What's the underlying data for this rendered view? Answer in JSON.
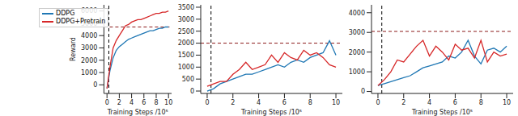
{
  "chart_data": [
    {
      "type": "line",
      "x_label": "Training Steps /10⁵",
      "y_label": "Reward",
      "x": [
        0,
        0.5,
        1,
        1.5,
        2,
        2.5,
        3,
        3.5,
        4,
        4.5,
        5,
        5.5,
        6,
        6.5,
        7,
        7.5,
        8,
        8.5,
        9,
        9.5,
        10
      ],
      "xlim": [
        -0.5,
        10.5
      ],
      "xticks": [
        0,
        2,
        4,
        6,
        8,
        10
      ],
      "ylim": [
        -700,
        6500
      ],
      "yticks": [
        0,
        1000,
        2000,
        3000,
        4000,
        5000,
        6000
      ],
      "hline": 4700,
      "vline": 0.3,
      "legend": "upper left",
      "series": [
        {
          "name": "DDPG",
          "color": "#1f77b4",
          "values": [
            -300,
            1200,
            2200,
            2800,
            3100,
            3300,
            3500,
            3700,
            3800,
            3900,
            4000,
            4100,
            4200,
            4300,
            4400,
            4400,
            4500,
            4600,
            4600,
            4700,
            4700
          ]
        },
        {
          "name": "DDPG+Pretrain",
          "color": "#d62728",
          "values": [
            -300,
            1500,
            3000,
            3600,
            4000,
            4400,
            4800,
            4900,
            5100,
            5200,
            5300,
            5300,
            5400,
            5500,
            5600,
            5700,
            5800,
            5800,
            5900,
            5900,
            6000
          ]
        }
      ]
    },
    {
      "type": "line",
      "x_label": "Training Steps /10⁵",
      "x": [
        0,
        0.5,
        1,
        1.5,
        2,
        2.5,
        3,
        3.5,
        4,
        4.5,
        5,
        5.5,
        6,
        6.5,
        7,
        7.5,
        8,
        8.5,
        9,
        9.5,
        10
      ],
      "xlim": [
        -0.5,
        10.5
      ],
      "xticks": [
        0,
        2,
        4,
        6,
        8,
        10
      ],
      "ylim": [
        -100,
        3600
      ],
      "yticks": [
        0,
        500,
        1000,
        1500,
        2000,
        2500,
        3000,
        3500
      ],
      "hline": 2000,
      "vline": 0.3,
      "series": [
        {
          "color": "#1f77b4",
          "values": [
            0,
            100,
            300,
            400,
            500,
            600,
            700,
            700,
            800,
            900,
            1000,
            1100,
            1000,
            1200,
            1300,
            1200,
            1400,
            1500,
            1600,
            2100,
            1500
          ]
        },
        {
          "color": "#d62728",
          "values": [
            200,
            300,
            400,
            400,
            700,
            900,
            1200,
            900,
            1000,
            1100,
            1500,
            1200,
            1600,
            1400,
            1300,
            1700,
            1500,
            1600,
            1400,
            1100,
            1000
          ]
        }
      ]
    },
    {
      "type": "line",
      "x_label": "Training Steps /10⁵",
      "x": [
        0,
        0.5,
        1,
        1.5,
        2,
        2.5,
        3,
        3.5,
        4,
        4.5,
        5,
        5.5,
        6,
        6.5,
        7,
        7.5,
        8,
        8.5,
        9,
        9.5,
        10
      ],
      "xlim": [
        -0.5,
        10.5
      ],
      "xticks": [
        0,
        2,
        4,
        6,
        8,
        10
      ],
      "ylim": [
        -100,
        4400
      ],
      "yticks": [
        0,
        1000,
        2000,
        3000,
        4000
      ],
      "hline": 3050,
      "vline": 0.3,
      "series": [
        {
          "color": "#1f77b4",
          "values": [
            300,
            400,
            500,
            600,
            700,
            800,
            1000,
            1200,
            1300,
            1400,
            1500,
            1800,
            1700,
            2000,
            2600,
            1800,
            1400,
            2100,
            2200,
            2000,
            2300
          ]
        },
        {
          "color": "#d62728",
          "values": [
            300,
            600,
            1000,
            1600,
            1500,
            1900,
            2300,
            2600,
            1800,
            2300,
            2000,
            1600,
            2400,
            2100,
            2200,
            1700,
            2600,
            1500,
            2000,
            1800,
            1900
          ]
        }
      ]
    }
  ]
}
